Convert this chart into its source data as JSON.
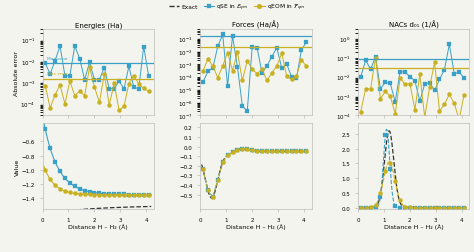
{
  "title_energies": "Energies (Ha)",
  "title_forces": "Forces (Ha/Å)",
  "title_nacs": "NACs d₀₁ (1/Å)",
  "xlabel": "Distance H – H₂ (Å)",
  "ylabel_top": "Absolute error",
  "ylabel_bottom": "Value",
  "legend_exact": "Exact",
  "legend_qse": "qSE in $\\mathcal{E}_{qm}$",
  "legend_qeom": "qEOM in $\\mathcal{F}_{qm}$",
  "color_exact": "#333333",
  "color_qse": "#3aa0c8",
  "color_qeom": "#c8b020",
  "background": "#f4f4ee",
  "hline_label_qse": "Max error",
  "hline_label_qeom": "Max error"
}
